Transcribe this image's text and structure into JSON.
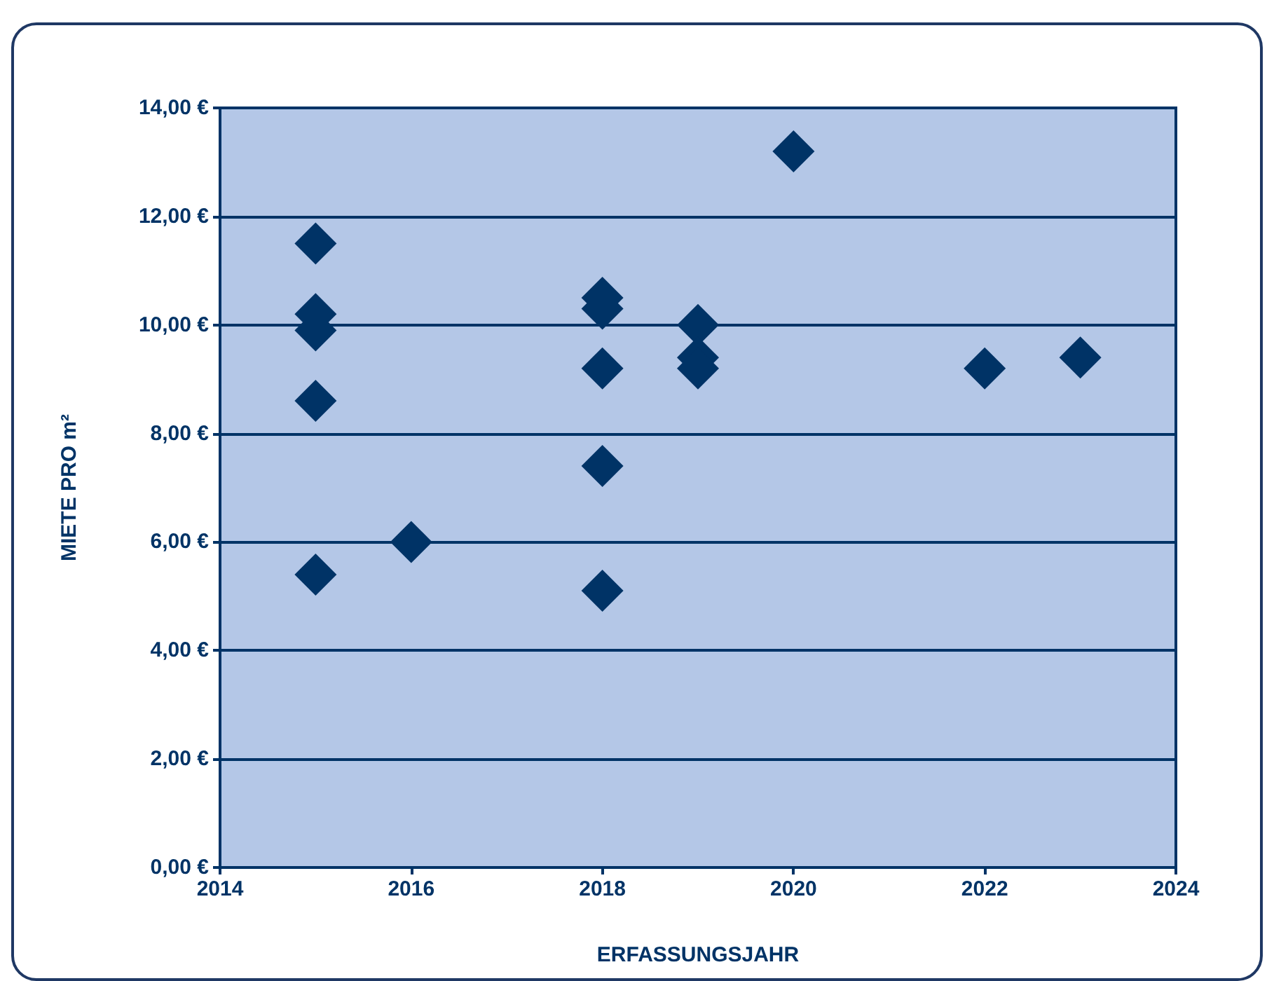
{
  "chart_data": {
    "type": "scatter",
    "xlabel": "ERFASSUNGSJAHR",
    "ylabel": "MIETE PRO m²",
    "x": [
      2015,
      2015,
      2015,
      2015,
      2015,
      2016,
      2018,
      2018,
      2018,
      2018,
      2018,
      2019,
      2019,
      2019,
      2020,
      2022,
      2023
    ],
    "values": [
      11.5,
      10.2,
      9.9,
      8.6,
      5.4,
      6.0,
      10.5,
      10.3,
      9.2,
      7.4,
      5.1,
      10.0,
      9.4,
      9.2,
      13.2,
      9.2,
      9.4
    ],
    "color": "#003366",
    "marker": "diamond",
    "xlim": [
      2014,
      2024
    ],
    "xticks": [
      2014,
      2016,
      2018,
      2020,
      2022,
      2024
    ],
    "ylim": [
      0,
      14
    ],
    "yticks": [
      {
        "value": 0,
        "label": "0,00 €"
      },
      {
        "value": 2,
        "label": "2,00 €"
      },
      {
        "value": 4,
        "label": "4,00 €"
      },
      {
        "value": 6,
        "label": "6,00 €"
      },
      {
        "value": 8,
        "label": "8,00 €"
      },
      {
        "value": 10,
        "label": "10,00 €"
      },
      {
        "value": 12,
        "label": "12,00 €"
      },
      {
        "value": 14,
        "label": "14,00 €"
      }
    ],
    "grid": "y"
  }
}
